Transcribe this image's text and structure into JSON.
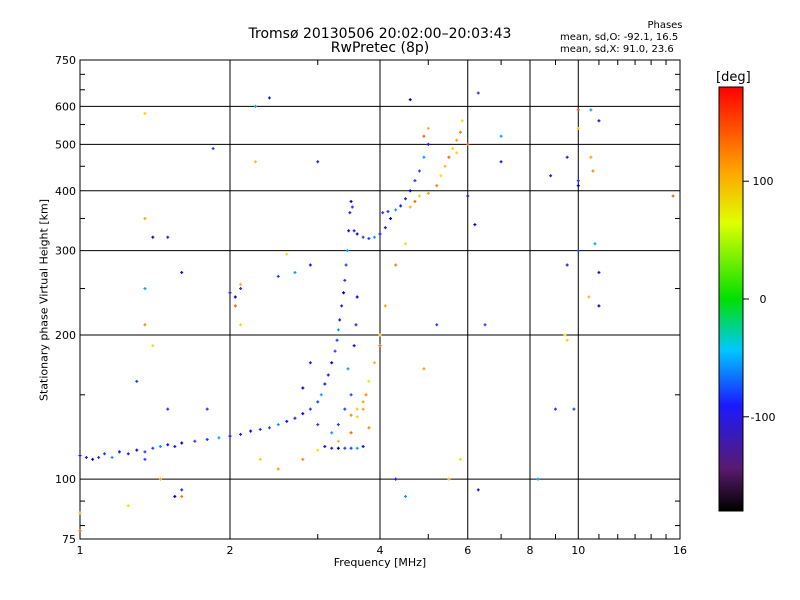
{
  "chart_data": {
    "type": "scatter",
    "title": "Tromsø 20130506 20:02:00–20:03:43",
    "subtitle": "RwPretec (8p)",
    "xlabel": "Frequency [MHz]",
    "ylabel": "Stationary phase Virtual Height [km]",
    "x_scale": "log",
    "y_scale": "log",
    "xlim": [
      1,
      16
    ],
    "ylim": [
      75,
      750
    ],
    "x_ticks": [
      1,
      2,
      4,
      6,
      8,
      10,
      16
    ],
    "y_ticks": [
      75,
      100,
      200,
      300,
      400,
      500,
      600,
      750
    ],
    "grid": true,
    "colorbar": {
      "label": "[deg]",
      "min": -180,
      "max": 180,
      "ticks": [
        100,
        0,
        -100
      ]
    },
    "stats": {
      "heading": "Phases",
      "line_o": "mean, sd,O: -92.1, 16.5",
      "line_x": "mean, sd,X:  91.0, 23.6"
    },
    "series": [
      {
        "mode": "O",
        "phase_mean": -92.1,
        "points": [
          [
            1.0,
            112
          ],
          [
            1.03,
            111
          ],
          [
            1.06,
            110
          ],
          [
            1.09,
            111
          ],
          [
            1.12,
            113
          ],
          [
            1.16,
            111
          ],
          [
            1.2,
            114
          ],
          [
            1.25,
            113
          ],
          [
            1.3,
            115
          ],
          [
            1.35,
            114
          ],
          [
            1.4,
            116
          ],
          [
            1.45,
            117
          ],
          [
            1.5,
            118
          ],
          [
            1.55,
            117
          ],
          [
            1.6,
            119
          ],
          [
            1.7,
            120
          ],
          [
            1.8,
            121
          ],
          [
            1.9,
            122
          ],
          [
            2.0,
            123
          ],
          [
            2.1,
            124
          ],
          [
            2.2,
            126
          ],
          [
            2.3,
            127
          ],
          [
            2.4,
            128
          ],
          [
            2.5,
            130
          ],
          [
            2.6,
            132
          ],
          [
            2.7,
            134
          ],
          [
            2.8,
            137
          ],
          [
            2.9,
            140
          ],
          [
            3.0,
            145
          ],
          [
            3.05,
            150
          ],
          [
            3.1,
            158
          ],
          [
            3.15,
            165
          ],
          [
            3.2,
            175
          ],
          [
            3.25,
            185
          ],
          [
            3.28,
            195
          ],
          [
            3.3,
            205
          ],
          [
            3.32,
            215
          ],
          [
            3.35,
            230
          ],
          [
            3.38,
            245
          ],
          [
            3.4,
            260
          ],
          [
            3.42,
            280
          ],
          [
            3.44,
            300
          ],
          [
            3.46,
            330
          ],
          [
            3.48,
            360
          ],
          [
            3.5,
            380
          ],
          [
            3.52,
            370
          ],
          [
            3.5,
            150
          ],
          [
            3.45,
            170
          ],
          [
            3.55,
            190
          ],
          [
            3.58,
            210
          ],
          [
            3.6,
            240
          ],
          [
            3.4,
            140
          ],
          [
            3.3,
            130
          ],
          [
            3.2,
            125
          ],
          [
            3.1,
            117
          ],
          [
            3.2,
            116
          ],
          [
            3.3,
            116
          ],
          [
            3.4,
            116
          ],
          [
            3.5,
            116
          ],
          [
            3.6,
            116
          ],
          [
            3.7,
            117
          ],
          [
            3.55,
            330
          ],
          [
            3.6,
            325
          ],
          [
            3.7,
            320
          ],
          [
            3.8,
            318
          ],
          [
            3.9,
            320
          ],
          [
            4.0,
            325
          ],
          [
            4.1,
            335
          ],
          [
            4.2,
            350
          ],
          [
            4.05,
            360
          ],
          [
            4.15,
            362
          ],
          [
            4.3,
            365
          ],
          [
            4.4,
            372
          ],
          [
            4.5,
            385
          ],
          [
            4.6,
            400
          ],
          [
            4.7,
            420
          ],
          [
            4.8,
            440
          ],
          [
            4.9,
            470
          ],
          [
            5.0,
            500
          ],
          [
            2.0,
            245
          ],
          [
            2.05,
            240
          ],
          [
            2.1,
            250
          ],
          [
            2.5,
            265
          ],
          [
            2.7,
            270
          ],
          [
            2.9,
            280
          ],
          [
            2.9,
            175
          ],
          [
            2.8,
            155
          ],
          [
            3.0,
            130
          ],
          [
            1.85,
            490
          ],
          [
            2.25,
            600
          ],
          [
            2.4,
            625
          ],
          [
            3.0,
            460
          ],
          [
            4.6,
            620
          ],
          [
            6.3,
            640
          ],
          [
            10.0,
            590
          ],
          [
            10.6,
            590
          ],
          [
            11.0,
            560
          ],
          [
            9.5,
            470
          ],
          [
            10.0,
            410
          ],
          [
            10.0,
            420
          ],
          [
            10.0,
            300
          ],
          [
            10.8,
            310
          ],
          [
            11.0,
            270
          ],
          [
            9.5,
            280
          ],
          [
            11.0,
            230
          ],
          [
            9.0,
            140
          ],
          [
            9.8,
            140
          ],
          [
            8.3,
            100
          ],
          [
            6.3,
            95
          ],
          [
            6.0,
            390
          ],
          [
            6.2,
            340
          ],
          [
            6.5,
            210
          ],
          [
            5.2,
            210
          ],
          [
            4.5,
            92
          ],
          [
            4.3,
            100
          ],
          [
            1.6,
            95
          ],
          [
            1.55,
            92
          ],
          [
            1.5,
            140
          ],
          [
            1.35,
            110
          ],
          [
            1.35,
            250
          ],
          [
            1.6,
            270
          ],
          [
            1.5,
            320
          ],
          [
            1.4,
            320
          ],
          [
            1.8,
            140
          ],
          [
            1.3,
            160
          ],
          [
            7.0,
            520
          ],
          [
            7.0,
            460
          ],
          [
            8.8,
            430
          ]
        ]
      },
      {
        "mode": "X",
        "phase_mean": 91.0,
        "points": [
          [
            1.35,
            580
          ],
          [
            1.35,
            350
          ],
          [
            1.35,
            210
          ],
          [
            1.4,
            190
          ],
          [
            2.25,
            460
          ],
          [
            2.05,
            230
          ],
          [
            2.1,
            210
          ],
          [
            1.45,
            100
          ],
          [
            1.6,
            92
          ],
          [
            1.25,
            88
          ],
          [
            1.0,
            85
          ],
          [
            1.0,
            78
          ],
          [
            2.3,
            110
          ],
          [
            2.5,
            105
          ],
          [
            2.8,
            110
          ],
          [
            3.0,
            115
          ],
          [
            3.3,
            120
          ],
          [
            3.5,
            125
          ],
          [
            3.6,
            135
          ],
          [
            3.7,
            140
          ],
          [
            3.75,
            150
          ],
          [
            3.8,
            160
          ],
          [
            3.9,
            175
          ],
          [
            4.0,
            190
          ],
          [
            4.0,
            200
          ],
          [
            4.1,
            230
          ],
          [
            4.3,
            280
          ],
          [
            4.5,
            310
          ],
          [
            4.6,
            370
          ],
          [
            4.7,
            380
          ],
          [
            4.8,
            390
          ],
          [
            5.0,
            395
          ],
          [
            5.2,
            410
          ],
          [
            5.3,
            430
          ],
          [
            5.4,
            450
          ],
          [
            5.5,
            470
          ],
          [
            5.6,
            490
          ],
          [
            5.7,
            510
          ],
          [
            5.8,
            530
          ],
          [
            5.85,
            560
          ],
          [
            5.0,
            540
          ],
          [
            4.9,
            520
          ],
          [
            3.6,
            140
          ],
          [
            3.7,
            145
          ],
          [
            3.5,
            136
          ],
          [
            5.8,
            110
          ],
          [
            5.5,
            100
          ],
          [
            10.0,
            590
          ],
          [
            10.0,
            540
          ],
          [
            10.6,
            470
          ],
          [
            10.7,
            440
          ],
          [
            9.4,
            200
          ],
          [
            10.5,
            240
          ],
          [
            15.5,
            390
          ],
          [
            9.5,
            195
          ],
          [
            4.9,
            170
          ],
          [
            3.8,
            128
          ],
          [
            2.6,
            295
          ],
          [
            2.1,
            255
          ],
          [
            6.0,
            500
          ],
          [
            5.7,
            480
          ]
        ]
      }
    ]
  }
}
